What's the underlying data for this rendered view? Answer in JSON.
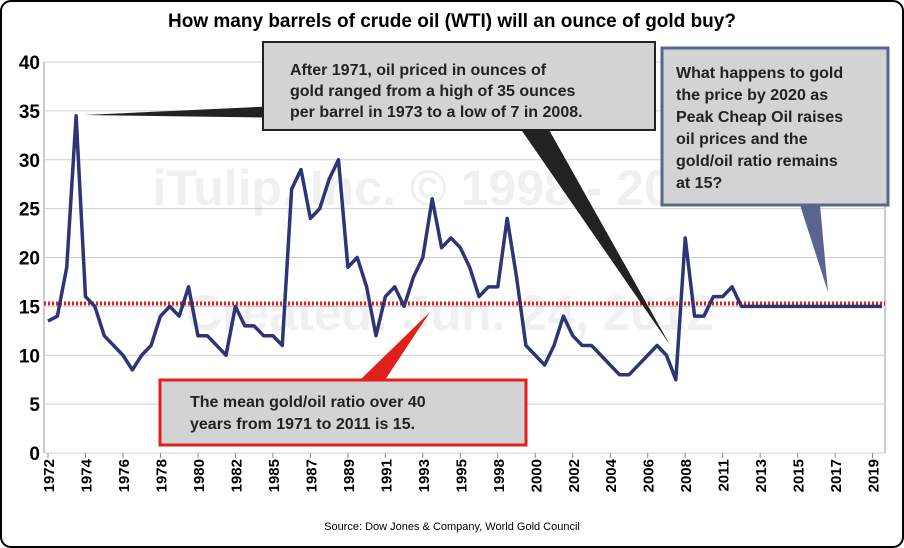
{
  "chart_data": {
    "type": "line",
    "title": "How many barrels of crude oil (WTI) will an ounce of gold buy?",
    "source": "Source: Dow Jones & Company, World Gold Council",
    "watermark": [
      "iTulip, Inc. © 1998 - 2012",
      "Created: Jun. 24, 2012"
    ],
    "categories": [
      "1972",
      null,
      null,
      null,
      "1974",
      null,
      null,
      null,
      "1976",
      null,
      null,
      null,
      "1978",
      null,
      null,
      null,
      "1980",
      null,
      null,
      null,
      "1982",
      null,
      null,
      null,
      "1985",
      null,
      null,
      null,
      "1987",
      null,
      null,
      null,
      "1989",
      null,
      null,
      null,
      "1991",
      null,
      null,
      null,
      "1993",
      null,
      null,
      null,
      "1995",
      null,
      null,
      null,
      "1998",
      null,
      null,
      null,
      "2000",
      null,
      null,
      null,
      "2002",
      null,
      null,
      null,
      "2004",
      null,
      null,
      null,
      "2006",
      null,
      null,
      null,
      "2008",
      null,
      null,
      null,
      "2011",
      null,
      null,
      null,
      "2013",
      null,
      null,
      null,
      "2015",
      null,
      null,
      null,
      "2017",
      null,
      null,
      null,
      "2019",
      null
    ],
    "series": [
      {
        "name": "Gold/oil ratio",
        "color": "#2e3574",
        "values": [
          13.5,
          14,
          19,
          34.5,
          16,
          15,
          12,
          11,
          10,
          8.5,
          10,
          11,
          14,
          15,
          14,
          17,
          12,
          12,
          11,
          10,
          15,
          13,
          13,
          12,
          12,
          11,
          27,
          29,
          24,
          25,
          28,
          30,
          19,
          20,
          17,
          12,
          16,
          17,
          15,
          18,
          20,
          26,
          21,
          22,
          21,
          19,
          16,
          17,
          17,
          24,
          18,
          11,
          10,
          9,
          11,
          14,
          12,
          11,
          11,
          10,
          9,
          8,
          8,
          9,
          10,
          11,
          10,
          7.5,
          22,
          14,
          14,
          16,
          16,
          17,
          15,
          15,
          15,
          15,
          15,
          15,
          15,
          15,
          15,
          15,
          15,
          15,
          15,
          15,
          15,
          15
        ]
      }
    ],
    "mean_line": {
      "value": 15.3,
      "color": "#e0201b"
    },
    "ylim": [
      0,
      40
    ],
    "yticks": [
      0,
      5,
      10,
      15,
      20,
      25,
      30,
      35,
      40
    ],
    "grid": true,
    "annotations": [
      {
        "lines": [
          "After 1971, oil priced in ounces of",
          "gold ranged from a high of 35 ounces",
          "per barrel in 1973 to a low of 7 in 2008."
        ]
      },
      {
        "lines": [
          "The mean gold/oil ratio over 40",
          "years from 1971 to 2011 is 15."
        ]
      },
      {
        "lines": [
          "What happens to gold",
          "the price by 2020 as",
          "Peak Cheap Oil raises",
          "oil prices and the",
          "gold/oil ratio remains",
          "at 15?"
        ]
      }
    ]
  }
}
